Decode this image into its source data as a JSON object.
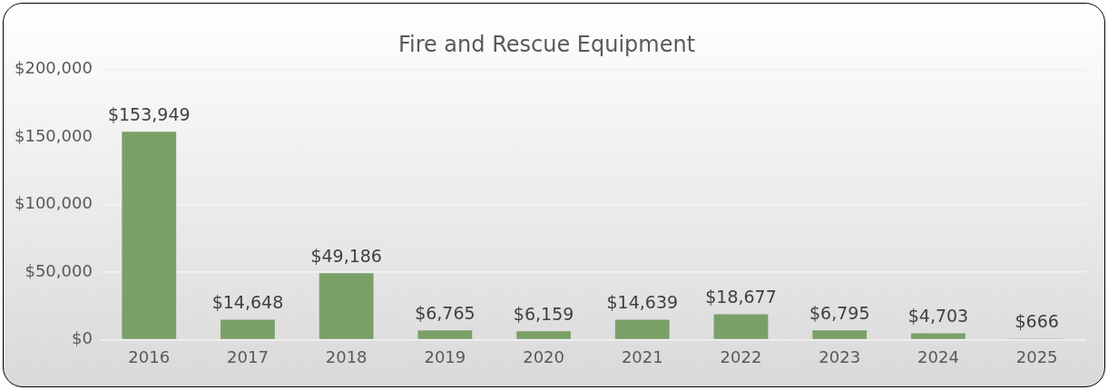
{
  "chart_data": {
    "type": "bar",
    "title": "Fire and Rescue Equipment",
    "categories": [
      "2016",
      "2017",
      "2018",
      "2019",
      "2020",
      "2021",
      "2022",
      "2023",
      "2024",
      "2025"
    ],
    "values": [
      153949,
      14648,
      49186,
      6765,
      6159,
      14639,
      18677,
      6795,
      4703,
      666
    ],
    "value_labels": [
      "$153,949",
      "$14,648",
      "$49,186",
      "$6,765",
      "$6,159",
      "$14,639",
      "$18,677",
      "$6,795",
      "$4,703",
      "$666"
    ],
    "color": "#7aa067",
    "ylim": [
      0,
      200000
    ],
    "yticks": [
      {
        "value": 0,
        "label": "$0"
      },
      {
        "value": 50000,
        "label": "$50,000"
      },
      {
        "value": 100000,
        "label": "$100,000"
      },
      {
        "value": 150000,
        "label": "$150,000"
      },
      {
        "value": 200000,
        "label": "$200,000"
      }
    ],
    "grid": "y"
  }
}
